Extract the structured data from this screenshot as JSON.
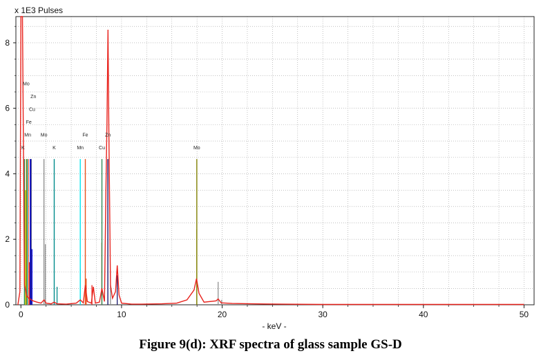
{
  "caption": "Figure 9(d): XRF spectra of glass sample GS-D",
  "chart_data": {
    "type": "line",
    "ylabel": "x 1E3 Pulses",
    "xlabel": "- keV -",
    "xlim": [
      -0.5,
      51
    ],
    "ylim": [
      0,
      8.8
    ],
    "x_ticks": [
      0,
      10,
      20,
      30,
      40,
      50
    ],
    "y_ticks": [
      0,
      2,
      4,
      6,
      8
    ],
    "grid": "dotted",
    "spectrum": {
      "color": "#e8221c",
      "points": [
        [
          -0.3,
          0
        ],
        [
          -0.1,
          0.4
        ],
        [
          0.0,
          8.8
        ],
        [
          0.15,
          8.8
        ],
        [
          0.35,
          0.6
        ],
        [
          0.6,
          0.25
        ],
        [
          0.9,
          0.18
        ],
        [
          1.2,
          0.12
        ],
        [
          1.6,
          0.08
        ],
        [
          2.0,
          0.05
        ],
        [
          2.3,
          0.15
        ],
        [
          2.5,
          0.05
        ],
        [
          3.0,
          0.03
        ],
        [
          3.3,
          0.08
        ],
        [
          3.6,
          0.03
        ],
        [
          4.5,
          0.02
        ],
        [
          5.5,
          0.05
        ],
        [
          5.9,
          0.15
        ],
        [
          6.2,
          0.06
        ],
        [
          6.4,
          0.6
        ],
        [
          6.6,
          0.1
        ],
        [
          7.0,
          0.05
        ],
        [
          7.2,
          0.55
        ],
        [
          7.4,
          0.05
        ],
        [
          7.8,
          0.08
        ],
        [
          8.05,
          0.5
        ],
        [
          8.3,
          0.1
        ],
        [
          8.45,
          3.5
        ],
        [
          8.55,
          5.5
        ],
        [
          8.65,
          8.4
        ],
        [
          8.75,
          5.0
        ],
        [
          8.9,
          0.6
        ],
        [
          9.1,
          0.2
        ],
        [
          9.4,
          0.4
        ],
        [
          9.57,
          1.2
        ],
        [
          9.75,
          0.3
        ],
        [
          10.0,
          0.05
        ],
        [
          11.0,
          0.02
        ],
        [
          12.0,
          0.02
        ],
        [
          14.0,
          0.03
        ],
        [
          15.5,
          0.05
        ],
        [
          16.5,
          0.15
        ],
        [
          17.2,
          0.45
        ],
        [
          17.45,
          0.8
        ],
        [
          17.7,
          0.35
        ],
        [
          18.2,
          0.08
        ],
        [
          19.4,
          0.12
        ],
        [
          19.6,
          0.18
        ],
        [
          19.9,
          0.06
        ],
        [
          21.0,
          0.04
        ],
        [
          23.0,
          0.03
        ],
        [
          26.0,
          0.02
        ],
        [
          30.0,
          0.01
        ],
        [
          40.0,
          0.01
        ],
        [
          50.0,
          0.01
        ]
      ]
    },
    "element_lines": [
      {
        "element": "K",
        "energy": 0.35,
        "height": 4.45,
        "color": "#2e8b57",
        "label": "K",
        "label_level": 0
      },
      {
        "element": "Mo",
        "energy": 0.55,
        "height": 4.45,
        "color": "#808000",
        "label": "Mo",
        "label_level": 5
      },
      {
        "element": "Mn",
        "energy": 0.65,
        "height": 4.45,
        "color": "#00e5ee",
        "label": "Mn",
        "label_level": 1
      },
      {
        "element": "Fe",
        "energy": 0.72,
        "height": 4.45,
        "color": "#e8521c",
        "label": "Fe",
        "label_level": 2
      },
      {
        "element": "Cu",
        "energy": 0.93,
        "height": 4.45,
        "color": "#0000ee",
        "label": "Cu",
        "label_level": 3
      },
      {
        "element": "Zn",
        "energy": 1.01,
        "height": 4.45,
        "color": "#1a1a6e",
        "label": "Zn",
        "label_level": 4
      },
      {
        "element": "Mo",
        "energy": 2.29,
        "height": 4.45,
        "color": "#909090",
        "label": "Mo",
        "label_level": 1
      },
      {
        "element": "K",
        "energy": 3.31,
        "height": 4.45,
        "color": "#008b8b",
        "label": "K",
        "label_level": 0
      },
      {
        "element": "Mn",
        "energy": 5.9,
        "height": 4.45,
        "color": "#00e5ee",
        "label": "Mn",
        "label_level": 0
      },
      {
        "element": "Fe",
        "energy": 6.4,
        "height": 4.45,
        "color": "#e8521c",
        "label": "Fe",
        "label_level": 1
      },
      {
        "element": "Cu",
        "energy": 8.05,
        "height": 4.45,
        "color": "#2e8b57",
        "label": "Cu",
        "label_level": 0
      },
      {
        "element": "Zn",
        "energy": 8.64,
        "height": 4.45,
        "color": "#1a1a6e",
        "label": "Zn",
        "label_level": 1
      },
      {
        "element": "Mo",
        "energy": 17.48,
        "height": 4.45,
        "color": "#808000",
        "label": "Mo",
        "label_level": 0
      }
    ],
    "minor_lines": [
      {
        "energy": 0.45,
        "height": 3.5,
        "color": "#c8c800"
      },
      {
        "energy": 0.85,
        "height": 1.3,
        "color": "#e8221c"
      },
      {
        "energy": 1.1,
        "height": 1.7,
        "color": "#0000ee"
      },
      {
        "energy": 2.43,
        "height": 1.85,
        "color": "#909090"
      },
      {
        "energy": 3.59,
        "height": 0.55,
        "color": "#008b8b"
      },
      {
        "energy": 5.9,
        "height": 1.1,
        "color": "#909090"
      },
      {
        "energy": 6.49,
        "height": 0.8,
        "color": "#e8521c"
      },
      {
        "energy": 7.06,
        "height": 0.6,
        "color": "#e8221c"
      },
      {
        "energy": 8.04,
        "height": 1.9,
        "color": "#e8521c"
      },
      {
        "energy": 8.9,
        "height": 0.6,
        "color": "#909090"
      },
      {
        "energy": 9.57,
        "height": 0.9,
        "color": "#1a1a6e"
      },
      {
        "energy": 17.48,
        "height": 2.3,
        "color": "#808000"
      },
      {
        "energy": 19.6,
        "height": 0.7,
        "color": "#909090"
      },
      {
        "energy": 19.95,
        "height": 0.15,
        "color": "#909090"
      }
    ]
  }
}
